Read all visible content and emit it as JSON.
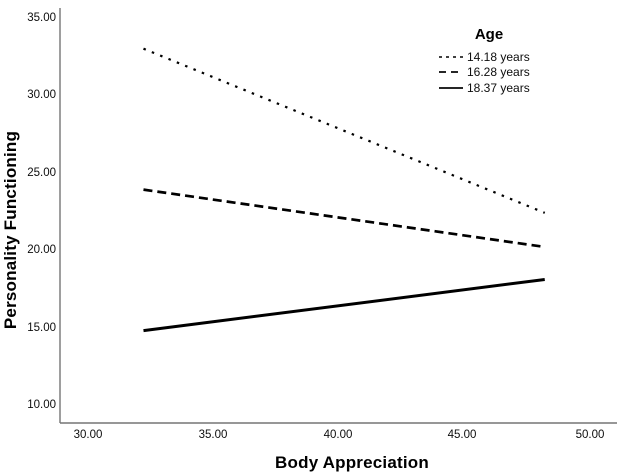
{
  "chart_data": {
    "type": "line",
    "title": "",
    "xlabel": "Body Appreciation",
    "ylabel": "Personality Functioning",
    "legend_title": "Age",
    "legend_position": "top-right-inside",
    "grid": false,
    "background": "#ffffff",
    "line_color": "#000000",
    "axis_color": "#757575",
    "xlim": [
      28.9,
      51.0
    ],
    "ylim": [
      8.8,
      35.6
    ],
    "xticks": [
      "30.00",
      "35.00",
      "40.00",
      "45.00",
      "50.00"
    ],
    "yticks": [
      "35.00",
      "30.00",
      "25.00",
      "20.00",
      "15.00",
      "10.00"
    ],
    "series": [
      {
        "name": "14.18 years",
        "style": "dotted",
        "x": [
          32.2,
          48.2
        ],
        "y": [
          33.0,
          22.4
        ]
      },
      {
        "name": "16.28 years",
        "style": "dashed",
        "x": [
          32.2,
          48.2
        ],
        "y": [
          23.9,
          20.2
        ]
      },
      {
        "name": "18.37 years",
        "style": "solid",
        "x": [
          32.2,
          48.2
        ],
        "y": [
          14.8,
          18.1
        ]
      }
    ]
  }
}
